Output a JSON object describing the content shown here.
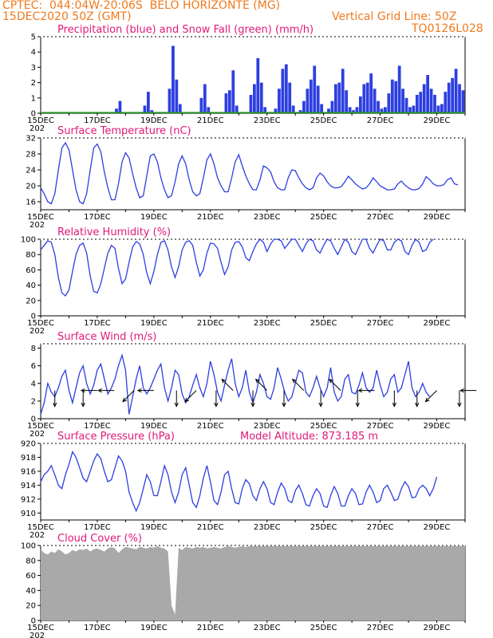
{
  "header": {
    "line1": "CPTEC:  044:04W-20:06S  BELO HORIZONTE (MG)",
    "line2": "15DEC2020 50Z (GMT)",
    "grid_note": "Vertical Grid Line: 50Z",
    "code": "TQ0126L028"
  },
  "colors": {
    "header": "#f07a1e",
    "title": "#e0197a",
    "line": "#2d3fe0",
    "snow": "#1e9b1e",
    "cloud": "#a9a9a9",
    "arrow": "#000000"
  },
  "x_axis": {
    "labels": [
      "15DEC",
      "17DEC",
      "19DEC",
      "21DEC",
      "23DEC",
      "25DEC",
      "27DEC",
      "29DEC"
    ],
    "year_stub": "202"
  },
  "chart_data": [
    {
      "type": "bar",
      "title": "Precipitation (blue) and Snow Fall (green) (mm/h)",
      "ylim": [
        0,
        5
      ],
      "yticks": [
        "0",
        "1",
        "2",
        "3",
        "4",
        "5"
      ],
      "day_start": 0,
      "step_hours": 3,
      "series": [
        {
          "name": "Precipitation (blue)",
          "values": [
            0,
            0,
            0,
            0,
            0,
            0,
            0,
            0,
            0,
            0,
            0,
            0,
            0,
            0,
            0,
            0,
            0,
            0,
            0,
            0,
            0,
            0.3,
            0.8,
            0,
            0,
            0,
            0,
            0,
            0,
            0.5,
            1.4,
            0.2,
            0,
            0,
            0,
            0,
            1.6,
            4.4,
            2.2,
            0.6,
            0,
            0,
            0,
            0,
            0,
            1.0,
            1.9,
            0.4,
            0,
            0,
            0,
            0,
            1.3,
            1.5,
            2.8,
            0.5,
            0,
            0,
            0,
            1.2,
            1.9,
            3.6,
            2.0,
            0.4,
            0,
            0,
            0.3,
            1.6,
            2.9,
            3.2,
            2.0,
            0.5,
            0,
            0.2,
            0.8,
            1.6,
            2.2,
            3.1,
            1.8,
            0.6,
            0,
            0.3,
            0.8,
            1.9,
            2.0,
            2.9,
            1.5,
            0.4,
            0.2,
            0.4,
            1.1,
            1.9,
            2.0,
            2.6,
            1.6,
            0.8,
            0.3,
            0.4,
            1.3,
            2.2,
            2.1,
            3.1,
            1.6,
            1.0,
            0.4,
            0.5,
            1.2,
            1.4,
            1.9,
            2.5,
            1.6,
            1.2,
            0.5,
            0.6,
            1.4,
            2.0,
            2.3,
            2.9,
            1.9,
            1.5
          ]
        },
        {
          "name": "Snow Fall (green)",
          "values": []
        }
      ]
    },
    {
      "type": "line",
      "title": "Surface Temperature (nC)",
      "ylim": [
        14,
        32
      ],
      "yticks": [
        "16",
        "20",
        "24",
        "28",
        "32"
      ],
      "day_start": 0,
      "step_hours": 3,
      "series": [
        {
          "name": "Surface Temperature",
          "values": [
            19.5,
            18.0,
            16.0,
            15.5,
            18.0,
            24.0,
            29.5,
            30.8,
            29.0,
            24.0,
            19.0,
            16.0,
            15.5,
            18.0,
            24.0,
            29.5,
            30.5,
            28.5,
            23.5,
            19.5,
            16.5,
            16.5,
            20.5,
            26.0,
            28.3,
            27.0,
            23.0,
            19.5,
            17.0,
            17.5,
            22.5,
            27.5,
            28.0,
            26.0,
            22.0,
            19.0,
            17.0,
            17.5,
            21.0,
            25.5,
            27.5,
            25.5,
            21.5,
            18.5,
            17.5,
            18.0,
            22.0,
            26.5,
            28.0,
            25.5,
            22.0,
            20.0,
            18.5,
            18.5,
            22.0,
            26.0,
            27.8,
            25.0,
            22.5,
            20.5,
            19.0,
            19.0,
            21.5,
            25.0,
            24.5,
            23.5,
            21.0,
            19.5,
            19.0,
            19.0,
            22.0,
            24.0,
            23.8,
            22.0,
            20.5,
            19.5,
            19.0,
            19.5,
            22.0,
            23.2,
            22.5,
            21.0,
            20.0,
            19.5,
            19.5,
            19.8,
            21.0,
            22.4,
            21.5,
            20.5,
            19.8,
            19.2,
            19.5,
            20.5,
            22.0,
            21.0,
            20.0,
            19.5,
            19.0,
            19.0,
            19.2,
            20.5,
            21.2,
            20.2,
            19.5,
            19.0,
            19.0,
            19.3,
            20.5,
            22.3,
            21.5,
            20.5,
            20.0,
            20.0,
            20.3,
            21.5,
            22.0,
            20.5,
            20.2
          ]
        }
      ]
    },
    {
      "type": "line",
      "title": "Relative Humidity (%)",
      "ylim": [
        0,
        100
      ],
      "yticks": [
        "0",
        "20",
        "40",
        "60",
        "80",
        "100"
      ],
      "day_start": 0,
      "step_hours": 3,
      "series": [
        {
          "name": "Relative Humidity",
          "values": [
            86,
            92,
            98,
            96,
            80,
            50,
            30,
            26,
            34,
            58,
            80,
            92,
            95,
            82,
            52,
            32,
            30,
            42,
            62,
            82,
            92,
            88,
            62,
            42,
            48,
            70,
            90,
            97,
            94,
            80,
            56,
            42,
            58,
            80,
            96,
            98,
            86,
            64,
            50,
            64,
            86,
            96,
            98,
            92,
            70,
            52,
            60,
            82,
            95,
            94,
            88,
            70,
            54,
            64,
            86,
            96,
            97,
            90,
            76,
            72,
            84,
            94,
            100,
            96,
            84,
            94,
            100,
            100,
            98,
            88,
            94,
            100,
            100,
            92,
            84,
            94,
            100,
            98,
            86,
            82,
            92,
            100,
            98,
            88,
            80,
            90,
            100,
            96,
            84,
            80,
            90,
            100,
            100,
            88,
            82,
            92,
            100,
            98,
            86,
            86,
            96,
            100,
            98,
            84,
            80,
            92,
            100,
            96,
            84,
            86,
            96,
            100
          ]
        }
      ]
    },
    {
      "type": "line",
      "title": "Surface Wind (m/s)",
      "ylim": [
        0,
        8.5
      ],
      "yticks": [
        "0",
        "2",
        "4",
        "6",
        "8"
      ],
      "day_start": 0,
      "step_hours": 3,
      "series": [
        {
          "name": "Surface Wind",
          "values": [
            0.5,
            1.8,
            4.0,
            3.0,
            2.5,
            3.5,
            4.8,
            5.5,
            3.2,
            1.8,
            3.5,
            5.2,
            6.0,
            4.0,
            2.8,
            3.8,
            5.5,
            6.2,
            4.5,
            2.8,
            3.5,
            4.5,
            6.0,
            7.2,
            5.5,
            0.5,
            2.5,
            4.5,
            6.0,
            3.5,
            2.8,
            3.5,
            4.5,
            5.5,
            6.2,
            3.5,
            2.0,
            3.5,
            5.5,
            5.0,
            2.8,
            1.8,
            2.5,
            3.8,
            5.0,
            3.5,
            2.5,
            4.0,
            6.5,
            5.0,
            3.0,
            2.0,
            3.8,
            5.5,
            6.8,
            4.0,
            2.5,
            3.5,
            5.5,
            3.0,
            1.8,
            3.0,
            5.0,
            4.0,
            2.5,
            2.2,
            3.5,
            5.8,
            4.5,
            3.0,
            2.0,
            2.5,
            4.0,
            5.5,
            5.2,
            3.0,
            2.5,
            3.5,
            4.8,
            3.5,
            2.5,
            3.5,
            5.8,
            3.0,
            2.0,
            2.5,
            4.5,
            5.0,
            3.0,
            2.8,
            3.8,
            5.2,
            3.5,
            3.0,
            3.5,
            5.5,
            3.8,
            2.5,
            3.0,
            4.5,
            5.0,
            3.0,
            3.5,
            5.0,
            6.5,
            3.5,
            2.5,
            3.0,
            4.0,
            3.0,
            2.5
          ]
        }
      ],
      "vectors": [
        {
          "day": 0.5,
          "dir": "S"
        },
        {
          "day": 1.5,
          "dir": "S"
        },
        {
          "day": 2.0,
          "dir": "W"
        },
        {
          "day": 2.6,
          "dir": "W"
        },
        {
          "day": 3.3,
          "dir": "SW"
        },
        {
          "day": 4.0,
          "dir": "W"
        },
        {
          "day": 4.8,
          "dir": "S"
        },
        {
          "day": 5.5,
          "dir": "SW"
        },
        {
          "day": 6.2,
          "dir": "S"
        },
        {
          "day": 6.8,
          "dir": "NW"
        },
        {
          "day": 7.5,
          "dir": "S"
        },
        {
          "day": 8.0,
          "dir": "NW"
        },
        {
          "day": 8.6,
          "dir": "S"
        },
        {
          "day": 9.3,
          "dir": "NW"
        },
        {
          "day": 9.9,
          "dir": "S"
        },
        {
          "day": 10.6,
          "dir": "NW"
        },
        {
          "day": 11.2,
          "dir": "S"
        },
        {
          "day": 11.8,
          "dir": "W"
        },
        {
          "day": 12.5,
          "dir": "S"
        },
        {
          "day": 13.3,
          "dir": "S"
        },
        {
          "day": 14.0,
          "dir": "SW"
        },
        {
          "day": 14.8,
          "dir": "S"
        },
        {
          "day": 15.4,
          "dir": "W"
        }
      ]
    },
    {
      "type": "line",
      "title": "Surface Pressure (hPa)",
      "annotation": "Model Altitude: 873.185  m",
      "ylim": [
        909,
        920
      ],
      "yticks": [
        "910",
        "912",
        "914",
        "916",
        "918",
        "920"
      ],
      "day_start": 0,
      "step_hours": 3,
      "series": [
        {
          "name": "Surface Pressure",
          "values": [
            914.5,
            915.5,
            916.0,
            916.8,
            915.5,
            914.0,
            913.5,
            915.5,
            917.0,
            918.8,
            918.0,
            916.5,
            915.0,
            914.5,
            916.0,
            917.5,
            918.5,
            917.8,
            916.0,
            914.5,
            914.8,
            916.5,
            918.2,
            917.5,
            916.0,
            913.0,
            911.5,
            910.3,
            911.5,
            913.5,
            915.5,
            914.5,
            912.5,
            912.5,
            914.5,
            916.8,
            915.5,
            913.0,
            911.5,
            913.0,
            915.5,
            916.5,
            914.0,
            911.5,
            910.8,
            912.5,
            915.0,
            916.8,
            914.5,
            911.8,
            911.2,
            913.0,
            915.5,
            916.0,
            913.5,
            911.5,
            911.3,
            913.5,
            914.8,
            914.2,
            912.5,
            911.8,
            913.5,
            914.5,
            913.5,
            911.5,
            911.2,
            913.0,
            914.3,
            913.5,
            911.8,
            911.5,
            913.2,
            914.0,
            912.8,
            911.2,
            911.0,
            912.5,
            913.5,
            912.8,
            911.0,
            910.8,
            912.5,
            913.8,
            912.8,
            911.0,
            911.0,
            912.5,
            913.5,
            912.8,
            911.2,
            911.3,
            913.0,
            914.0,
            913.0,
            911.5,
            911.8,
            913.5,
            914.0,
            913.0,
            911.8,
            912.0,
            913.5,
            914.5,
            913.8,
            912.2,
            912.3,
            913.5,
            914.0,
            913.5,
            912.5,
            913.5,
            915.2
          ]
        }
      ]
    },
    {
      "type": "area",
      "title": "Cloud Cover (%)",
      "ylim": [
        0,
        100
      ],
      "yticks": [
        "0",
        "20",
        "40",
        "60",
        "80",
        "100"
      ],
      "day_start": 0,
      "step_hours": 3,
      "series": [
        {
          "name": "Cloud Cover",
          "values": [
            95,
            90,
            88,
            92,
            90,
            95,
            92,
            88,
            90,
            94,
            92,
            95,
            94,
            96,
            92,
            95,
            96,
            94,
            92,
            96,
            98,
            96,
            90,
            95,
            98,
            97,
            96,
            95,
            98,
            97,
            96,
            98,
            97,
            99,
            97,
            96,
            92,
            20,
            8,
            97,
            94,
            98,
            97,
            96,
            98,
            97,
            98,
            96,
            97,
            98,
            97,
            96,
            98,
            99,
            98,
            97,
            98,
            99,
            98,
            99,
            99,
            99,
            99,
            99,
            99,
            99,
            99,
            99,
            99,
            99,
            99,
            99,
            99,
            99,
            99,
            99,
            99,
            99,
            99,
            99,
            99,
            99,
            99,
            99,
            99,
            99,
            99,
            99,
            99,
            99,
            99,
            99,
            99,
            99,
            99,
            99,
            99,
            99,
            99,
            99,
            99,
            99,
            99,
            99,
            99,
            99,
            99,
            99,
            99,
            99,
            99,
            99
          ]
        }
      ]
    }
  ]
}
